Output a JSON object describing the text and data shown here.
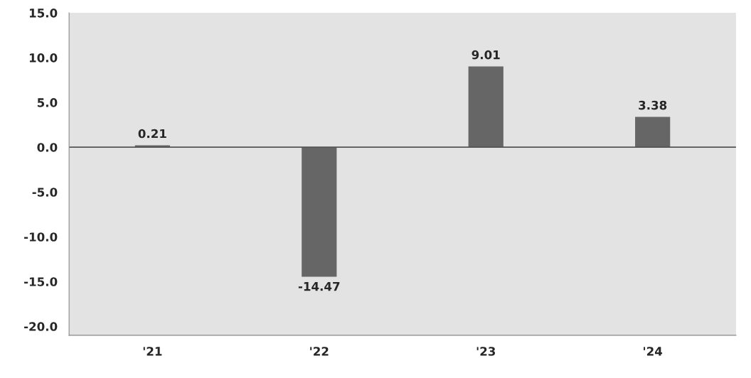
{
  "chart_data": {
    "type": "bar",
    "categories": [
      "'21",
      "'22",
      "'23",
      "'24"
    ],
    "values": [
      0.21,
      -14.47,
      9.01,
      3.38
    ],
    "color": "#666666",
    "ylim": [
      -21,
      15
    ],
    "yticks": [
      {
        "value": -20,
        "label": "-20.0"
      },
      {
        "value": -15,
        "label": "-15.0"
      },
      {
        "value": -10,
        "label": "-10.0"
      },
      {
        "value": -5,
        "label": "-5.0"
      },
      {
        "value": 0,
        "label": "0.0"
      },
      {
        "value": 5,
        "label": "5.0"
      },
      {
        "value": 10,
        "label": "10.0"
      },
      {
        "value": 15,
        "label": "15.0"
      }
    ],
    "ref_lines": [
      {
        "axis": "y",
        "value": 0,
        "color": "#555555"
      }
    ],
    "data_labels": true,
    "grid": false
  }
}
